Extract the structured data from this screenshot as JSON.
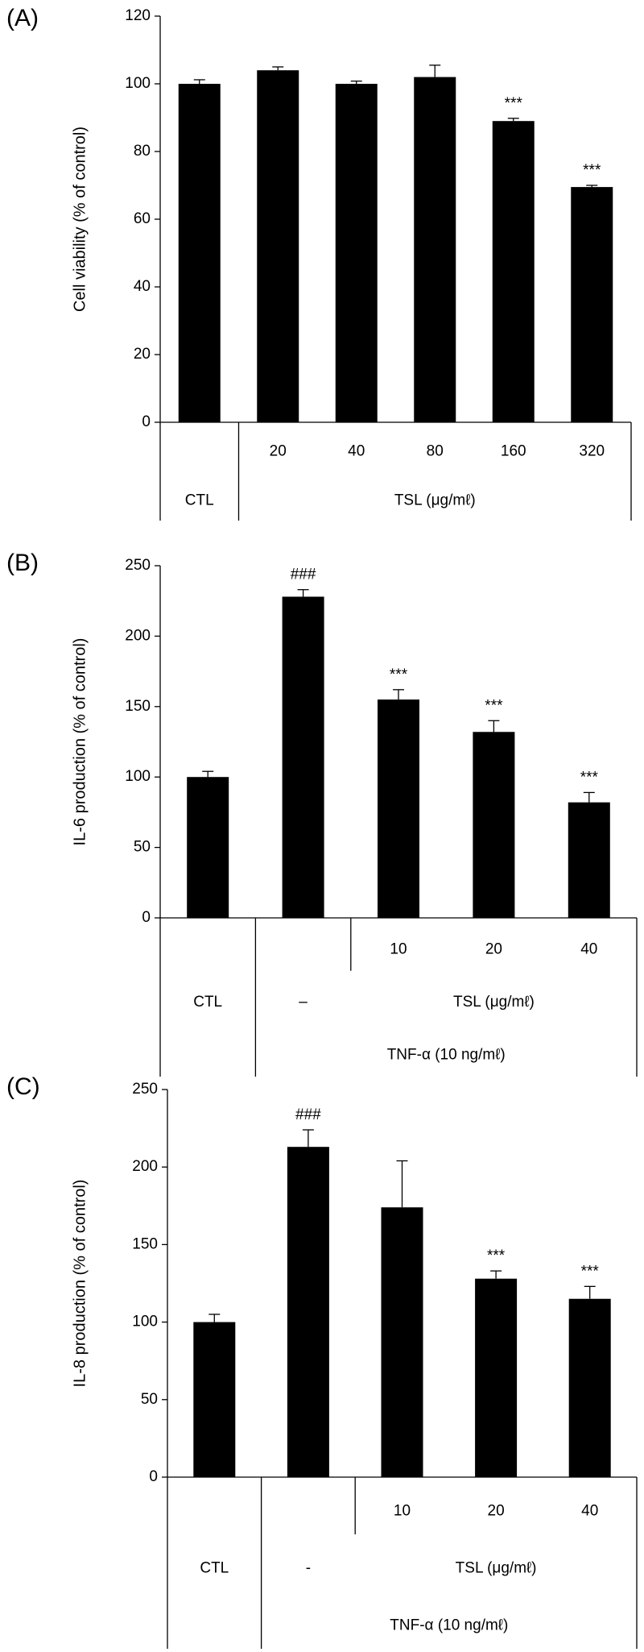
{
  "chart_data": [
    {
      "type": "bar",
      "panel_label": "(A)",
      "ylabel": "Cell viability (% of control)",
      "categories": [
        "CTL",
        "20",
        "40",
        "80",
        "160",
        "320"
      ],
      "values": [
        100,
        104,
        100,
        102,
        89,
        69.5
      ],
      "errors": [
        1.2,
        1,
        0.8,
        3.5,
        0.8,
        0.5
      ],
      "annotations": [
        null,
        null,
        null,
        null,
        "***",
        "***"
      ],
      "groups": [
        {
          "label": "TSL (μg/mℓ)",
          "from": 1,
          "to": 5
        }
      ],
      "color": "#000000",
      "ylim": [
        0,
        120
      ],
      "yticks": [
        0,
        20,
        40,
        60,
        80,
        100,
        120
      ]
    },
    {
      "type": "bar",
      "panel_label": "(B)",
      "ylabel": "IL-6 production (% of control)",
      "categories": [
        "CTL",
        "–",
        "10",
        "20",
        "40"
      ],
      "values": [
        100,
        228,
        155,
        132,
        82
      ],
      "errors": [
        4,
        5,
        7,
        8,
        7
      ],
      "annotations": [
        null,
        "###",
        "***",
        "***",
        "***"
      ],
      "groups": [
        {
          "label": "TSL (μg/mℓ)",
          "from": 2,
          "to": 4
        },
        {
          "label": "TNF-α (10 ng/mℓ)",
          "from": 1,
          "to": 4
        }
      ],
      "color": "#000000",
      "ylim": [
        0,
        250
      ],
      "yticks": [
        0,
        50,
        100,
        150,
        200,
        250
      ]
    },
    {
      "type": "bar",
      "panel_label": "(C)",
      "ylabel": "IL-8 production (% of control)",
      "categories": [
        "CTL",
        "-",
        "10",
        "20",
        "40"
      ],
      "values": [
        100,
        213,
        174,
        128,
        115
      ],
      "errors": [
        5,
        11,
        30,
        5,
        8
      ],
      "annotations": [
        null,
        "###",
        null,
        "***",
        "***"
      ],
      "groups": [
        {
          "label": "TSL (μg/mℓ)",
          "from": 2,
          "to": 4
        },
        {
          "label": "TNF-α (10 ng/mℓ)",
          "from": 1,
          "to": 4
        }
      ],
      "color": "#000000",
      "ylim": [
        0,
        250
      ],
      "yticks": [
        0,
        50,
        100,
        150,
        200,
        250
      ]
    }
  ]
}
